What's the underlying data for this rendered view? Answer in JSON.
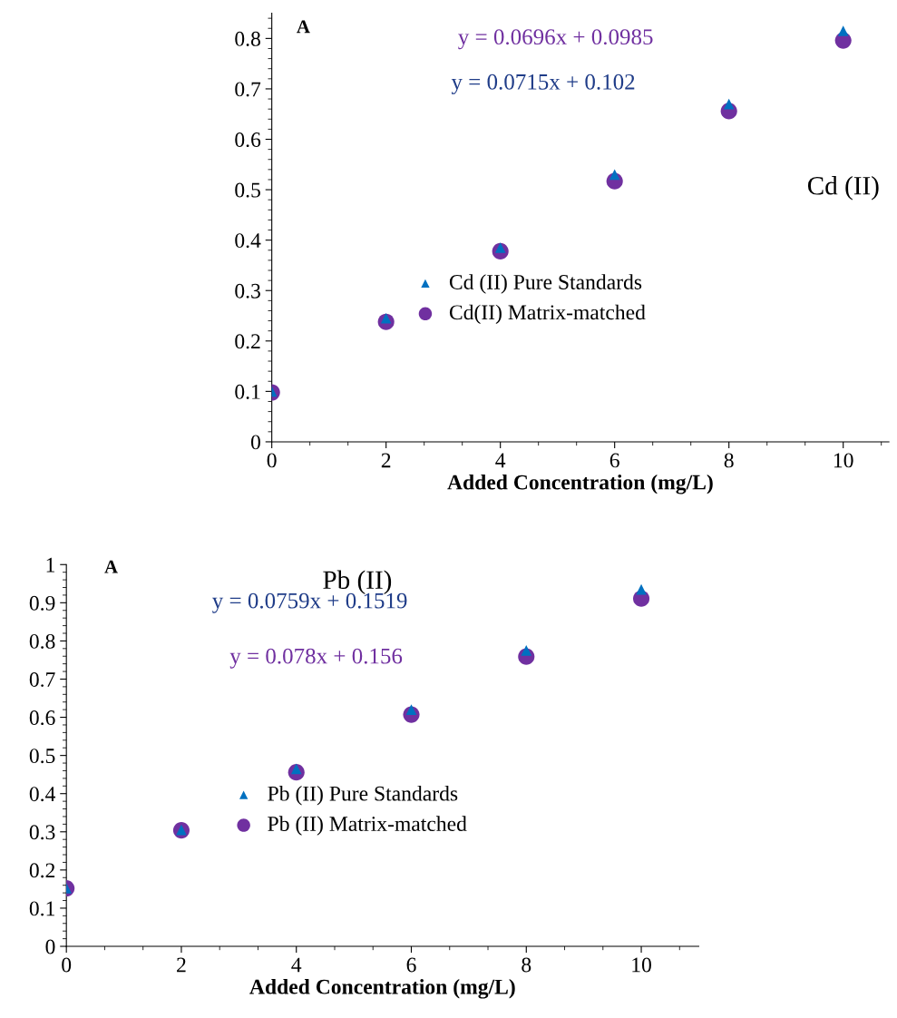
{
  "chart_data": [
    {
      "type": "scatter",
      "title": "Cd (II)",
      "xlabel": "Added Concentration (mg/L)",
      "x": [
        0,
        2,
        4,
        6,
        8,
        10
      ],
      "xlim": [
        0,
        10.8
      ],
      "xticks": [
        0,
        2,
        4,
        6,
        8,
        10
      ],
      "ylim": [
        0,
        0.85
      ],
      "yticks": [
        0,
        0.1,
        0.2,
        0.3,
        0.4,
        0.5,
        0.6,
        0.7,
        0.8
      ],
      "grid": false,
      "legend": "bottom",
      "annotations": [
        "A",
        "y = 0.0696x + 0.0985",
        "y = 0.0715x + 0.102"
      ],
      "series": [
        {
          "name": "Cd (II) Pure Standards",
          "color": "#0070c0",
          "marker": "triangle",
          "values": [
            0.1,
            0.245,
            0.385,
            0.53,
            0.67,
            0.815
          ]
        },
        {
          "name": "Cd(II) Matrix-matched",
          "color": "#7030a0",
          "marker": "circle",
          "values": [
            0.098,
            0.238,
            0.378,
            0.517,
            0.656,
            0.796
          ]
        }
      ]
    },
    {
      "type": "scatter",
      "title": "Pb (II)",
      "xlabel": "Added Concentration (mg/L)",
      "x": [
        0,
        2,
        4,
        6,
        8,
        10
      ],
      "xlim": [
        0,
        11
      ],
      "xticks": [
        0,
        2,
        4,
        6,
        8,
        10
      ],
      "ylim": [
        0,
        1
      ],
      "yticks": [
        0,
        0.1,
        0.2,
        0.3,
        0.4,
        0.5,
        0.6,
        0.7,
        0.8,
        0.9,
        1
      ],
      "grid": false,
      "legend": "bottom",
      "annotations": [
        "A",
        "y = 0.0759x + 0.1519",
        "y = 0.078x + 0.156"
      ],
      "series": [
        {
          "name": "Pb (II) Pure Standards",
          "color": "#0070c0",
          "marker": "triangle",
          "values": [
            0.152,
            0.305,
            0.465,
            0.62,
            0.775,
            0.935
          ]
        },
        {
          "name": "Pb (II) Matrix-matched",
          "color": "#7030a0",
          "marker": "circle",
          "values": [
            0.152,
            0.304,
            0.456,
            0.607,
            0.759,
            0.911
          ]
        }
      ]
    }
  ]
}
